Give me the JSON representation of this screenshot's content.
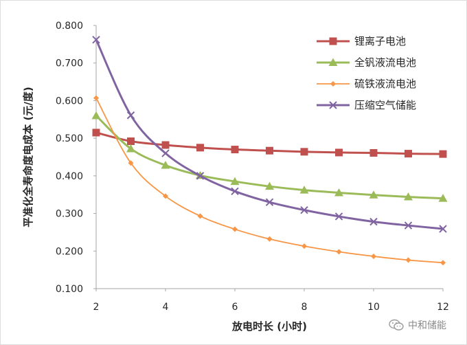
{
  "chart_data": {
    "type": "line",
    "title": "",
    "xlabel": "放电时长 (小时)",
    "ylabel": "平准化全寿命度电成本 (元/度)",
    "xlim": [
      2,
      12
    ],
    "ylim": [
      0.1,
      0.8
    ],
    "x_ticks": [
      "2",
      "4",
      "6",
      "8",
      "10",
      "12"
    ],
    "y_ticks": [
      "0.100",
      "0.200",
      "0.300",
      "0.400",
      "0.500",
      "0.600",
      "0.700",
      "0.800"
    ],
    "grid": false,
    "legend_position": "top-right",
    "x": [
      2,
      3,
      4,
      5,
      6,
      7,
      8,
      9,
      10,
      11,
      12
    ],
    "series": [
      {
        "name": "锂离子电池",
        "color": "#c0504d",
        "marker": "square",
        "values": [
          0.515,
          0.492,
          0.482,
          0.475,
          0.47,
          0.467,
          0.464,
          0.462,
          0.461,
          0.459,
          0.458
        ]
      },
      {
        "name": "全钒液流电池",
        "color": "#9bbb59",
        "marker": "triangle",
        "values": [
          0.56,
          0.472,
          0.428,
          0.401,
          0.385,
          0.372,
          0.362,
          0.355,
          0.349,
          0.344,
          0.34
        ]
      },
      {
        "name": "硫铁液流电池",
        "color": "#f79646",
        "marker": "diamond",
        "values": [
          0.607,
          0.434,
          0.346,
          0.293,
          0.258,
          0.232,
          0.213,
          0.198,
          0.186,
          0.176,
          0.169
        ]
      },
      {
        "name": "压缩空气储能",
        "color": "#8064a2",
        "marker": "x",
        "values": [
          0.762,
          0.561,
          0.46,
          0.4,
          0.359,
          0.33,
          0.309,
          0.292,
          0.278,
          0.268,
          0.259
        ]
      }
    ]
  },
  "watermark": {
    "text": "中和储能",
    "icon": "wechat-icon"
  }
}
